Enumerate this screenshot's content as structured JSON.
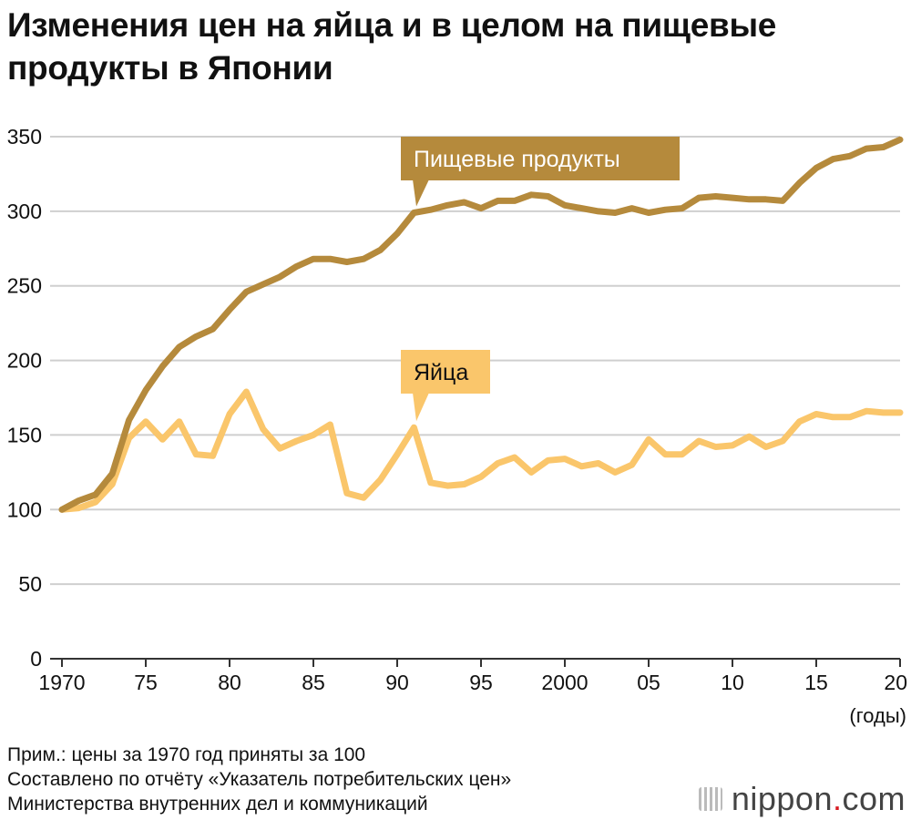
{
  "title": "Изменения цен на яйца и в целом на пищевые продукты в Японии",
  "notes": [
    "Прим.: цены за 1970 год приняты за 100",
    "Составлено по отчёту «Указатель потребительских цен»",
    "Министерства внутренних дел и коммуникаций"
  ],
  "logo": {
    "name": "nippon",
    "dot": ".",
    "tld": "com"
  },
  "chart_data": {
    "type": "line",
    "title": "Изменения цен на яйца и в целом на пищевые продукты в Японии",
    "xlabel": "(годы)",
    "ylabel": "",
    "xlim": [
      1970,
      2020
    ],
    "ylim": [
      0,
      350
    ],
    "yticks": [
      0,
      50,
      100,
      150,
      200,
      250,
      300,
      350
    ],
    "xticks": [
      {
        "value": 1970,
        "label": "1970"
      },
      {
        "value": 1975,
        "label": "75"
      },
      {
        "value": 1980,
        "label": "80"
      },
      {
        "value": 1985,
        "label": "85"
      },
      {
        "value": 1990,
        "label": "90"
      },
      {
        "value": 1995,
        "label": "95"
      },
      {
        "value": 2000,
        "label": "2000"
      },
      {
        "value": 2005,
        "label": "05"
      },
      {
        "value": 2010,
        "label": "10"
      },
      {
        "value": 2015,
        "label": "15"
      },
      {
        "value": 2020,
        "label": "20"
      }
    ],
    "grid": "horizontal",
    "x": [
      1970,
      1971,
      1972,
      1973,
      1974,
      1975,
      1976,
      1977,
      1978,
      1979,
      1980,
      1981,
      1982,
      1983,
      1984,
      1985,
      1986,
      1987,
      1988,
      1989,
      1990,
      1991,
      1992,
      1993,
      1994,
      1995,
      1996,
      1997,
      1998,
      1999,
      2000,
      2001,
      2002,
      2003,
      2004,
      2005,
      2006,
      2007,
      2008,
      2009,
      2010,
      2011,
      2012,
      2013,
      2014,
      2015,
      2016,
      2017,
      2018,
      2019,
      2020
    ],
    "series": [
      {
        "name": "Пищевые продукты",
        "color": "#b58a3c",
        "label_x": 1991,
        "label_y": 299,
        "values": [
          100,
          106,
          110,
          124,
          160,
          180,
          196,
          209,
          216,
          221,
          234,
          246,
          251,
          256,
          263,
          268,
          268,
          266,
          268,
          274,
          285,
          299,
          301,
          304,
          306,
          302,
          307,
          307,
          311,
          310,
          304,
          302,
          300,
          299,
          302,
          299,
          301,
          302,
          309,
          310,
          309,
          308,
          308,
          307,
          319,
          329,
          335,
          337,
          342,
          343,
          348
        ]
      },
      {
        "name": "Яйца",
        "color": "#fac66b",
        "label_x": 1991,
        "label_y": 155,
        "values": [
          100,
          101,
          105,
          117,
          148,
          159,
          147,
          159,
          137,
          136,
          164,
          179,
          154,
          141,
          146,
          150,
          157,
          111,
          108,
          120,
          137,
          155,
          118,
          116,
          117,
          122,
          131,
          135,
          125,
          133,
          134,
          129,
          131,
          125,
          130,
          147,
          137,
          137,
          146,
          142,
          143,
          149,
          142,
          146,
          159,
          164,
          162,
          162,
          166,
          165,
          165
        ]
      }
    ]
  }
}
